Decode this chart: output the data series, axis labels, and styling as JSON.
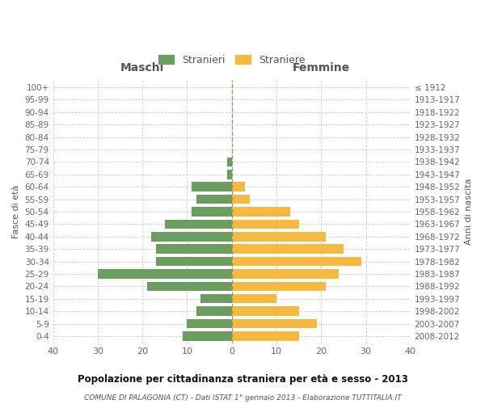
{
  "age_groups": [
    "0-4",
    "5-9",
    "10-14",
    "15-19",
    "20-24",
    "25-29",
    "30-34",
    "35-39",
    "40-44",
    "45-49",
    "50-54",
    "55-59",
    "60-64",
    "65-69",
    "70-74",
    "75-79",
    "80-84",
    "85-89",
    "90-94",
    "95-99",
    "100+"
  ],
  "birth_years": [
    "2008-2012",
    "2003-2007",
    "1998-2002",
    "1993-1997",
    "1988-1992",
    "1983-1987",
    "1978-1982",
    "1973-1977",
    "1968-1972",
    "1963-1967",
    "1958-1962",
    "1953-1957",
    "1948-1952",
    "1943-1947",
    "1938-1942",
    "1933-1937",
    "1928-1932",
    "1923-1927",
    "1918-1922",
    "1913-1917",
    "≤ 1912"
  ],
  "maschi": [
    11,
    10,
    8,
    7,
    19,
    30,
    17,
    17,
    18,
    15,
    9,
    8,
    9,
    1,
    1,
    0,
    0,
    0,
    0,
    0,
    0
  ],
  "femmine": [
    15,
    19,
    15,
    10,
    21,
    24,
    29,
    25,
    21,
    15,
    13,
    4,
    3,
    0,
    0,
    0,
    0,
    0,
    0,
    0,
    0
  ],
  "maschi_color": "#6b9e5e",
  "femmine_color": "#f5b942",
  "background_color": "#ffffff",
  "grid_color": "#cccccc",
  "title": "Popolazione per cittadinanza straniera per età e sesso - 2013",
  "subtitle": "COMUNE DI PALAGONIA (CT) - Dati ISTAT 1° gennaio 2013 - Elaborazione TUTTITALIA.IT",
  "xlabel_left": "Maschi",
  "xlabel_right": "Femmine",
  "ylabel_left": "Fasce di età",
  "ylabel_right": "Anni di nascita",
  "legend_stranieri": "Stranieri",
  "legend_straniere": "Straniere",
  "xlim": 40,
  "bar_height": 0.75
}
